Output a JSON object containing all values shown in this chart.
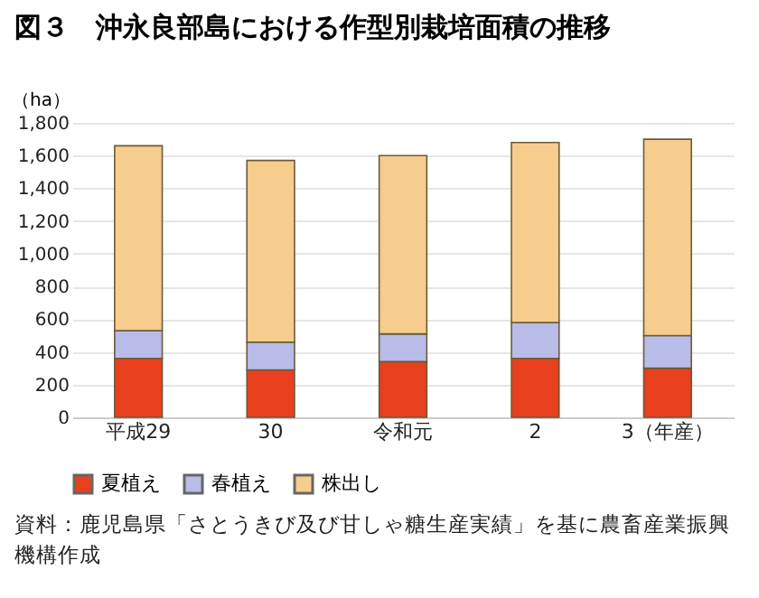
{
  "chart_data": {
    "type": "bar",
    "title": "図３　沖永良部島における作型別栽培面積の推移",
    "ylabel": "（ha）",
    "stacked": true,
    "categories": [
      "平成29",
      "30",
      "令和元",
      "2",
      "3（年産）"
    ],
    "series": [
      {
        "name": "夏植え",
        "color": "#e8401c",
        "values": [
          360,
          290,
          340,
          360,
          300
        ]
      },
      {
        "name": "春植え",
        "color": "#b8bce8",
        "values": [
          170,
          170,
          170,
          220,
          200
        ]
      },
      {
        "name": "株出し",
        "color": "#f6cd8c",
        "values": [
          1130,
          1110,
          1090,
          1100,
          1200
        ]
      }
    ],
    "ylim": [
      0,
      1800
    ],
    "yticks": [
      0,
      200,
      400,
      600,
      800,
      {
        "value": 1000,
        "label": "1,000"
      },
      {
        "value": 1200,
        "label": "1,200"
      },
      {
        "value": 1400,
        "label": "1,400"
      },
      {
        "value": 1600,
        "label": "1,600"
      },
      {
        "value": 1800,
        "label": "1,800"
      }
    ],
    "grid": "y",
    "legend": "bottom",
    "annotations": [
      "資料：鹿児島県「さとうきび及び甘しゃ糖生産実績」を基に農畜産業振興機構作成"
    ]
  }
}
